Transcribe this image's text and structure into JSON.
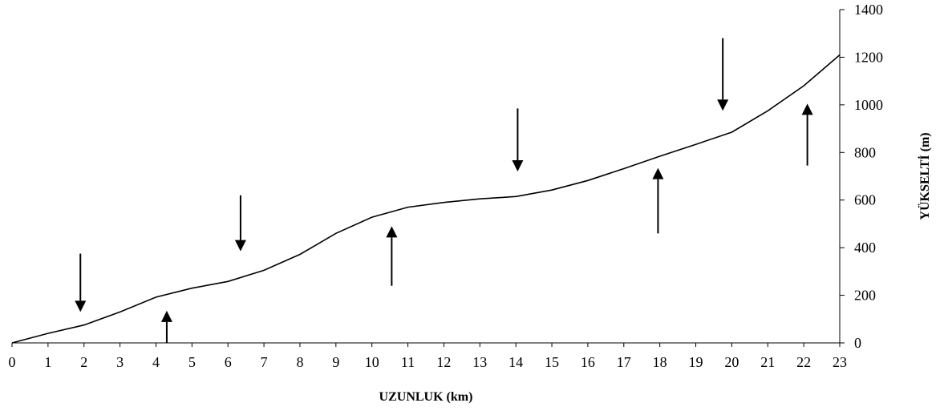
{
  "chart_data": {
    "type": "line",
    "xlabel": "UZUNLUK (km)",
    "ylabel": "YÜKSELTİ (m)",
    "xlim": [
      0,
      23
    ],
    "ylim": [
      0,
      1400
    ],
    "x_ticks": [
      0,
      1,
      2,
      3,
      4,
      5,
      6,
      7,
      8,
      9,
      10,
      11,
      12,
      13,
      14,
      15,
      16,
      17,
      18,
      19,
      20,
      21,
      22,
      23
    ],
    "y_ticks": [
      0,
      200,
      400,
      600,
      800,
      1000,
      1200,
      1400
    ],
    "y_axis_side": "right",
    "grid": false,
    "legend": "none",
    "line_color": "#000000",
    "series": [
      {
        "x": [
          0,
          1,
          2,
          3,
          4,
          5,
          6,
          7,
          8,
          9,
          10,
          11,
          12,
          13,
          14,
          15,
          16,
          17,
          18,
          19,
          20,
          21,
          22,
          23
        ],
        "values": [
          0,
          40,
          75,
          130,
          192,
          230,
          258,
          305,
          372,
          460,
          528,
          570,
          590,
          605,
          615,
          642,
          682,
          732,
          784,
          834,
          885,
          975,
          1080,
          1210
        ]
      }
    ],
    "annotations": {
      "down_arrows": [
        {
          "x": 1.9,
          "y_from": 375,
          "y_to": 130
        },
        {
          "x": 6.35,
          "y_from": 620,
          "y_to": 385
        },
        {
          "x": 14.05,
          "y_from": 985,
          "y_to": 720
        },
        {
          "x": 19.75,
          "y_from": 1280,
          "y_to": 975
        }
      ],
      "up_arrows": [
        {
          "x": 4.3,
          "y_from": 0,
          "y_to": 135
        },
        {
          "x": 10.55,
          "y_from": 240,
          "y_to": 490
        },
        {
          "x": 17.95,
          "y_from": 460,
          "y_to": 735
        },
        {
          "x": 22.1,
          "y_from": 745,
          "y_to": 1005
        }
      ]
    }
  }
}
